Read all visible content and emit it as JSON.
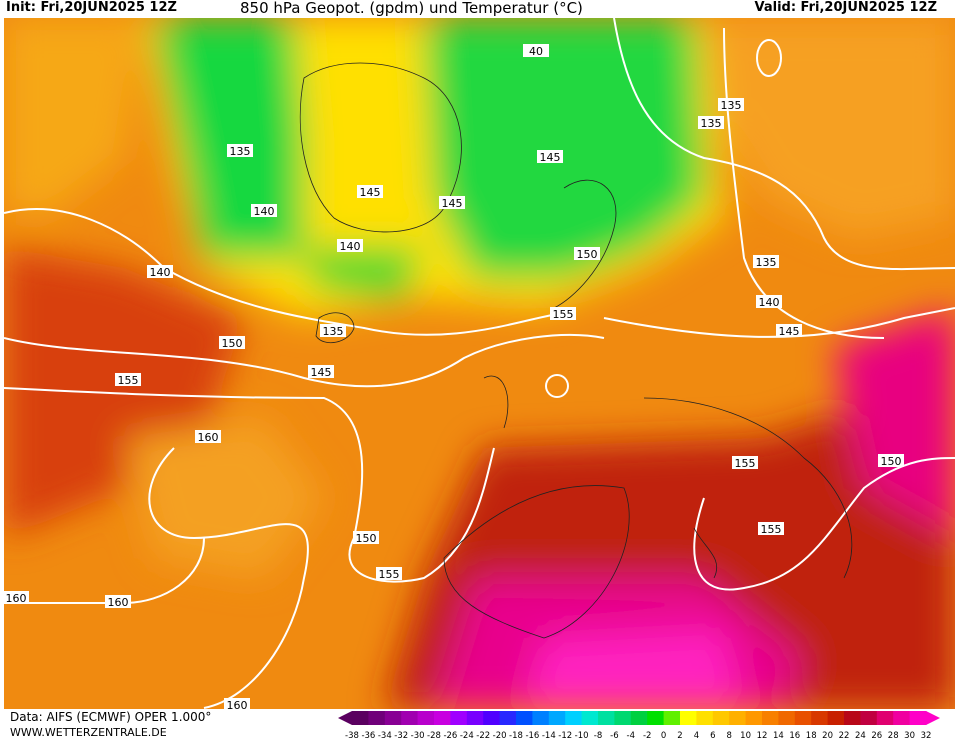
{
  "header": {
    "init": "Init: Fri,20JUN2025 12Z",
    "title": "850 hPa Geopot. (gpdm) und Temperatur (°C)",
    "valid": "Valid: Fri,20JUN2025 12Z"
  },
  "map": {
    "contour_labels": [
      "40",
      "135",
      "135",
      "135",
      "145",
      "145",
      "145",
      "140",
      "140",
      "150",
      "135",
      "140",
      "140",
      "155",
      "145",
      "135",
      "150",
      "145",
      "155",
      "160",
      "155",
      "150",
      "155",
      "150",
      "155",
      "160",
      "160",
      "160"
    ]
  },
  "footer": {
    "source": "Data: AIFS (ECMWF) OPER 1.000°",
    "site": "WWW.WETTERZENTRALE.DE"
  },
  "colorbar": {
    "ticks": [
      -38,
      -36,
      -34,
      -32,
      -30,
      -28,
      -26,
      -24,
      -22,
      -20,
      -18,
      -16,
      -14,
      -12,
      -10,
      -8,
      -6,
      -4,
      -2,
      0,
      2,
      4,
      6,
      8,
      10,
      12,
      14,
      16,
      18,
      20,
      22,
      24,
      26,
      28,
      30,
      32
    ],
    "colors": [
      "#5a0060",
      "#70007a",
      "#880094",
      "#a000b0",
      "#b800cc",
      "#c800e0",
      "#a000ff",
      "#7800ff",
      "#5000ff",
      "#2828ff",
      "#0050ff",
      "#0080ff",
      "#00a8ff",
      "#00d0ff",
      "#00e8d0",
      "#00e0a0",
      "#00d870",
      "#00d040",
      "#00e000",
      "#60f000",
      "#ffff00",
      "#ffe000",
      "#ffc800",
      "#ffb000",
      "#ff9800",
      "#f88000",
      "#f06800",
      "#e85000",
      "#d83800",
      "#c82000",
      "#b80818",
      "#c00040",
      "#e00070",
      "#f000a0",
      "#ff00c8"
    ]
  }
}
